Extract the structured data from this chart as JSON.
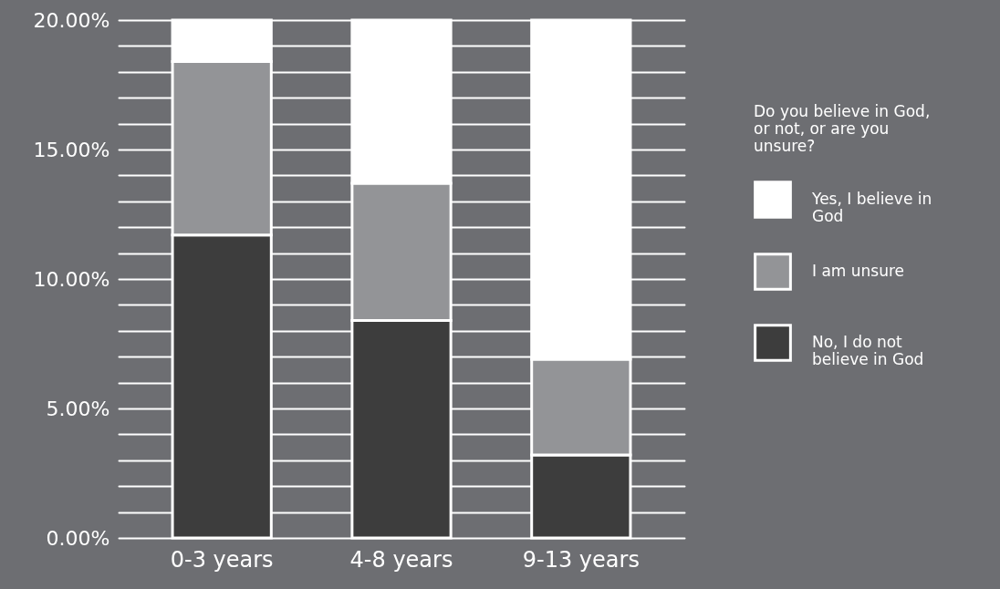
{
  "chart_data": {
    "type": "bar",
    "stacked": true,
    "categories": [
      "0-3 years",
      "4-8 years",
      "9-13 years"
    ],
    "series": [
      {
        "name": "No, I do not believe in God",
        "color": "#3d3d3d",
        "values": [
          11.7,
          8.4,
          3.2
        ]
      },
      {
        "name": "I am unsure",
        "color": "#939497",
        "values": [
          6.7,
          5.3,
          3.7
        ]
      },
      {
        "name": "Yes, I believe in God",
        "color": "#ffffff",
        "values": [
          1.6,
          6.3,
          13.1
        ]
      }
    ],
    "legend_title": "Do you believe in God, or not, or are you unsure?",
    "legend": "right",
    "ylim": [
      0,
      20
    ],
    "yticks": [
      {
        "value": 0,
        "label": "0.00%"
      },
      {
        "value": 1,
        "label": null
      },
      {
        "value": 2,
        "label": null
      },
      {
        "value": 3,
        "label": null
      },
      {
        "value": 4,
        "label": null
      },
      {
        "value": 5,
        "label": "5.00%"
      },
      {
        "value": 6,
        "label": null
      },
      {
        "value": 7,
        "label": null
      },
      {
        "value": 8,
        "label": null
      },
      {
        "value": 9,
        "label": null
      },
      {
        "value": 10,
        "label": "10.00%"
      },
      {
        "value": 11,
        "label": null
      },
      {
        "value": 12,
        "label": null
      },
      {
        "value": 13,
        "label": null
      },
      {
        "value": 14,
        "label": null
      },
      {
        "value": 15,
        "label": "15.00%"
      },
      {
        "value": 16,
        "label": null
      },
      {
        "value": 17,
        "label": null
      },
      {
        "value": 18,
        "label": null
      },
      {
        "value": 19,
        "label": null
      },
      {
        "value": 20,
        "label": "20.00%"
      }
    ],
    "grid": "y"
  }
}
